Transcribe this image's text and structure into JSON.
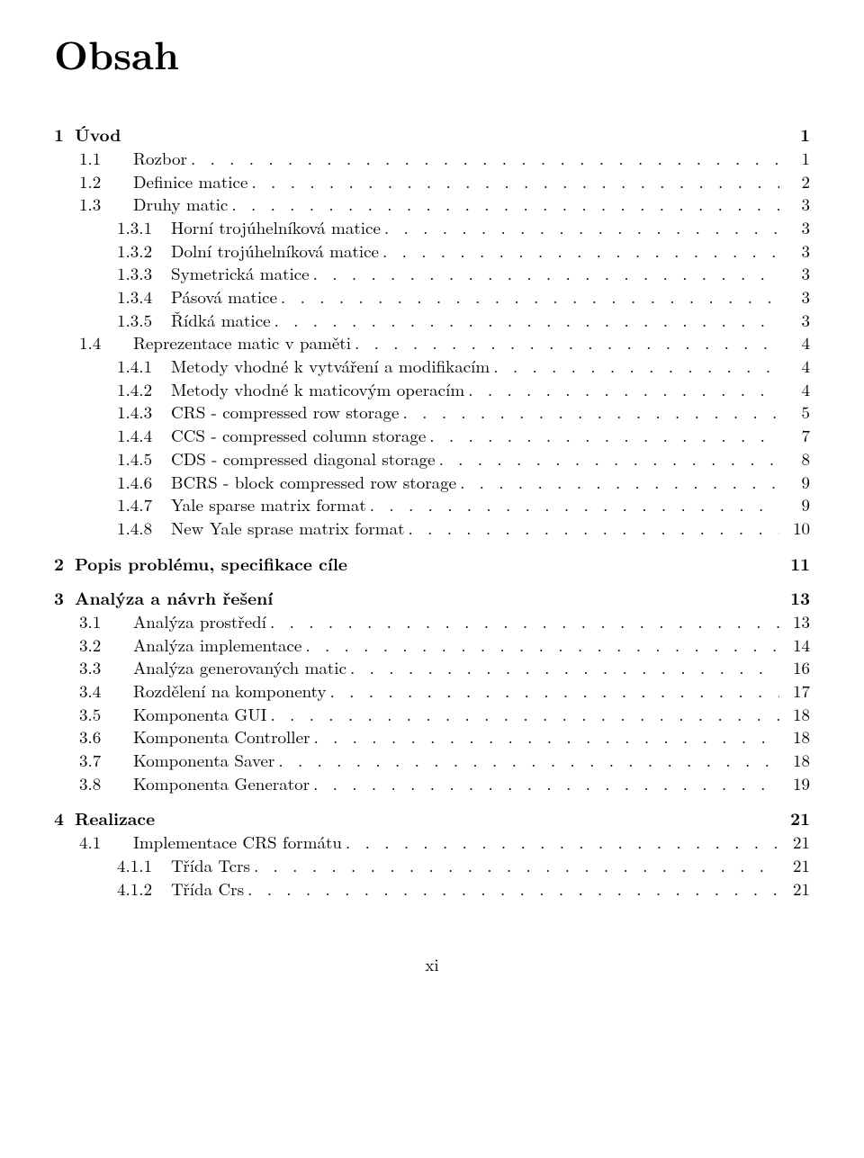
{
  "heading": "Obsah",
  "page_number": "xi",
  "chapters": [
    {
      "num": "1",
      "title": "Úvod",
      "page": "1",
      "sections": [
        {
          "level": 1,
          "num": "1.1",
          "title": "Rozbor",
          "page": "1"
        },
        {
          "level": 1,
          "num": "1.2",
          "title": "Definice matice",
          "page": "2"
        },
        {
          "level": 1,
          "num": "1.3",
          "title": "Druhy matic",
          "page": "3"
        },
        {
          "level": 2,
          "num": "1.3.1",
          "title": "Horní trojúhelníková matice",
          "page": "3"
        },
        {
          "level": 2,
          "num": "1.3.2",
          "title": "Dolní trojúhelníková matice",
          "page": "3"
        },
        {
          "level": 2,
          "num": "1.3.3",
          "title": "Symetrická matice",
          "page": "3"
        },
        {
          "level": 2,
          "num": "1.3.4",
          "title": "Pásová matice",
          "page": "3"
        },
        {
          "level": 2,
          "num": "1.3.5",
          "title": "Řídká matice",
          "page": "3"
        },
        {
          "level": 1,
          "num": "1.4",
          "title": "Reprezentace matic v paměti",
          "page": "4"
        },
        {
          "level": 2,
          "num": "1.4.1",
          "title": "Metody vhodné k vytváření a modifikacím",
          "page": "4"
        },
        {
          "level": 2,
          "num": "1.4.2",
          "title": "Metody vhodné k maticovým operacím",
          "page": "4"
        },
        {
          "level": 2,
          "num": "1.4.3",
          "title": "CRS - compressed row storage",
          "page": "5"
        },
        {
          "level": 2,
          "num": "1.4.4",
          "title": "CCS - compressed column storage",
          "page": "7"
        },
        {
          "level": 2,
          "num": "1.4.5",
          "title": "CDS - compressed diagonal storage",
          "page": "8"
        },
        {
          "level": 2,
          "num": "1.4.6",
          "title": "BCRS - block compressed row storage",
          "page": "9"
        },
        {
          "level": 2,
          "num": "1.4.7",
          "title": "Yale sparse matrix format",
          "page": "9"
        },
        {
          "level": 2,
          "num": "1.4.8",
          "title": "New Yale sprase matrix format",
          "page": "10"
        }
      ]
    },
    {
      "num": "2",
      "title": "Popis problému, specifikace cíle",
      "page": "11",
      "sections": []
    },
    {
      "num": "3",
      "title": "Analýza a návrh řešení",
      "page": "13",
      "sections": [
        {
          "level": 1,
          "num": "3.1",
          "title": "Analýza prostředí",
          "page": "13"
        },
        {
          "level": 1,
          "num": "3.2",
          "title": "Analýza implementace",
          "page": "14"
        },
        {
          "level": 1,
          "num": "3.3",
          "title": "Analýza generovaných matic",
          "page": "16"
        },
        {
          "level": 1,
          "num": "3.4",
          "title": "Rozdělení na komponenty",
          "page": "17"
        },
        {
          "level": 1,
          "num": "3.5",
          "title": "Komponenta GUI",
          "page": "18"
        },
        {
          "level": 1,
          "num": "3.6",
          "title": "Komponenta Controller",
          "page": "18"
        },
        {
          "level": 1,
          "num": "3.7",
          "title": "Komponenta Saver",
          "page": "18"
        },
        {
          "level": 1,
          "num": "3.8",
          "title": "Komponenta Generator",
          "page": "19"
        }
      ]
    },
    {
      "num": "4",
      "title": "Realizace",
      "page": "21",
      "sections": [
        {
          "level": 1,
          "num": "4.1",
          "title": "Implementace CRS formátu",
          "page": "21"
        },
        {
          "level": 2,
          "num": "4.1.1",
          "title": "Třída Tcrs",
          "page": "21"
        },
        {
          "level": 2,
          "num": "4.1.2",
          "title": "Třída Crs",
          "page": "21"
        }
      ]
    }
  ]
}
